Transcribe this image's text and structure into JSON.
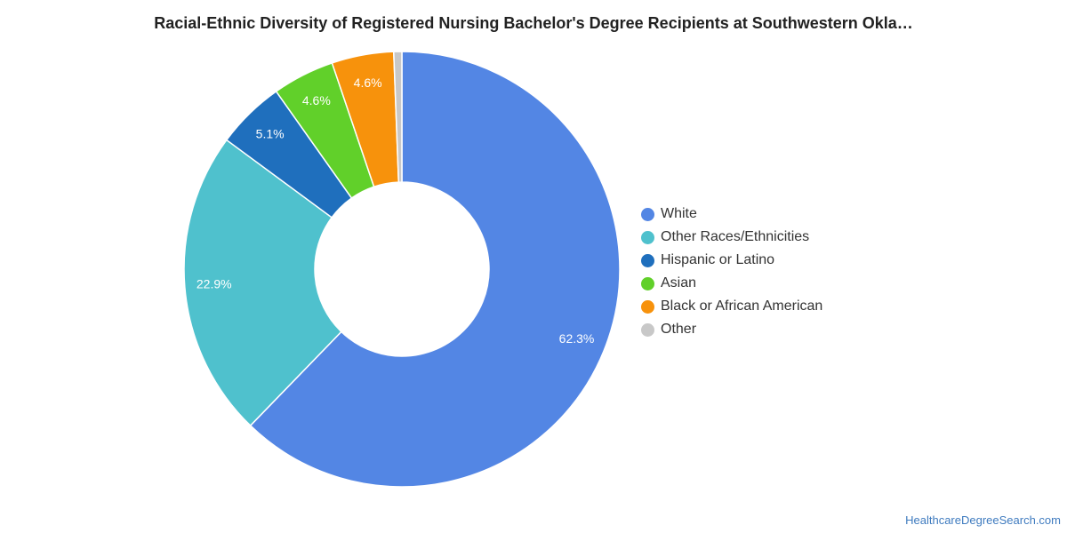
{
  "chart_data": {
    "type": "pie",
    "variant": "donut",
    "title": "Racial-Ethnic Diversity of Registered Nursing Bachelor's Degree Recipients at Southwestern Okla…",
    "legend_position": "right",
    "slices": [
      {
        "label": "White",
        "value": 62.3,
        "display": "62.3%",
        "color": "#5386e4"
      },
      {
        "label": "Other Races/Ethnicities",
        "value": 22.9,
        "display": "22.9%",
        "color": "#4fc1cd"
      },
      {
        "label": "Hispanic or Latino",
        "value": 5.1,
        "display": "5.1%",
        "color": "#1f6fbd"
      },
      {
        "label": "Asian",
        "value": 4.6,
        "display": "4.6%",
        "color": "#61d02a"
      },
      {
        "label": "Black or African American",
        "value": 4.6,
        "display": "4.6%",
        "color": "#f7920c"
      },
      {
        "label": "Other",
        "value": 0.6,
        "display": "",
        "color": "#c8c8c8"
      }
    ]
  },
  "watermark": "HealthcareDegreeSearch.com"
}
